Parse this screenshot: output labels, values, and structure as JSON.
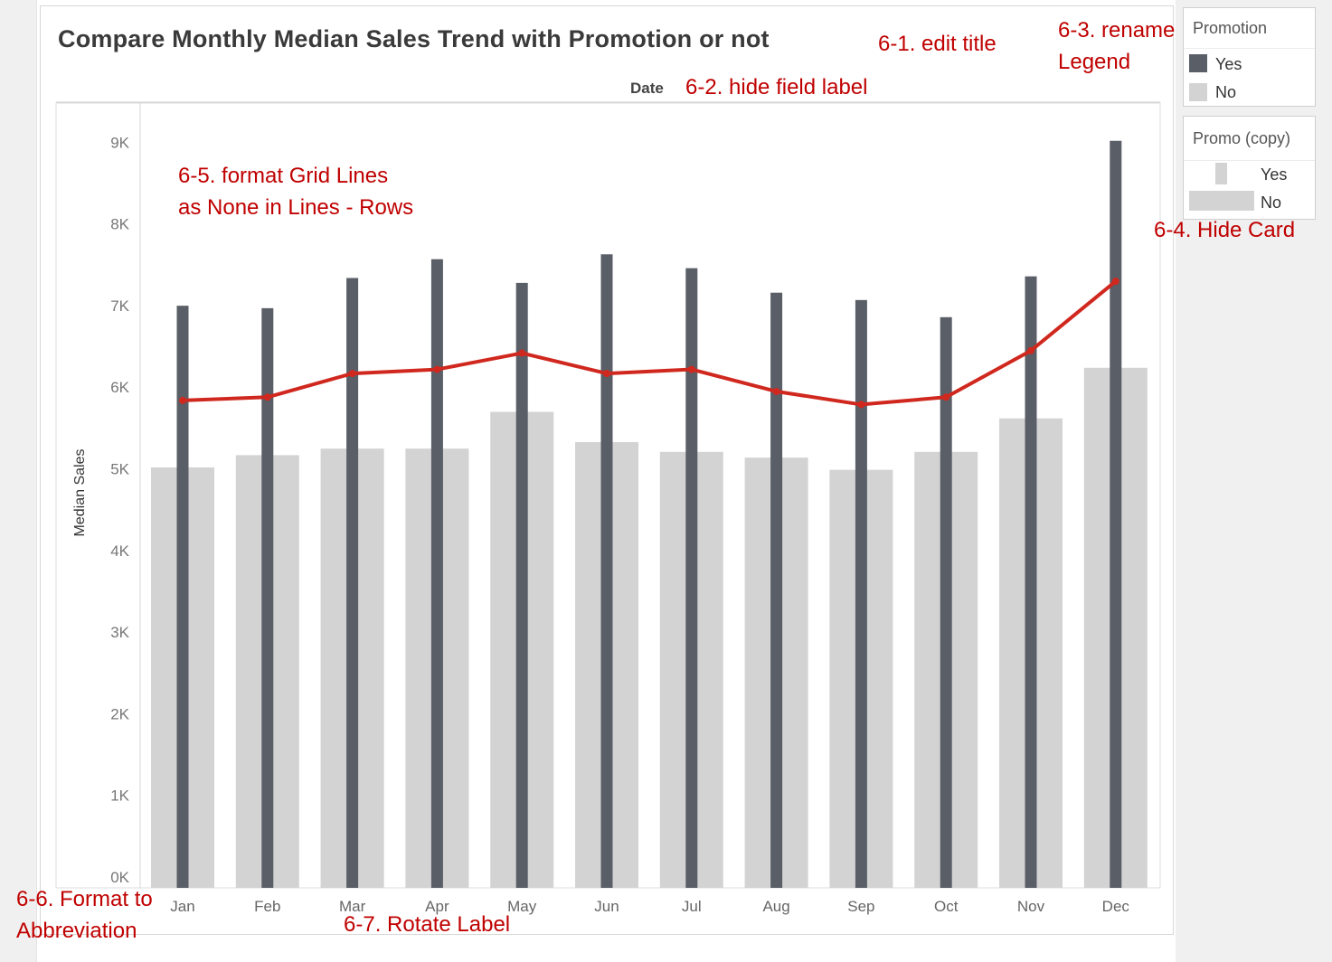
{
  "title": "Compare Monthly Median Sales Trend with Promotion or not",
  "field_label": "Date",
  "annotations": {
    "edit_title": "6-1. edit title",
    "hide_field_label": "6-2. hide field label",
    "rename_legend_line1": "6-3. rename",
    "rename_legend_line2": "Legend",
    "hide_card": "6-4. Hide Card",
    "grid_lines_line1": "6-5. format Grid Lines",
    "grid_lines_line2": "as None in Lines - Rows",
    "abbrev_line1": "6-6. Format to",
    "abbrev_line2": "Abbreviation",
    "rotate_label": "6-7. Rotate Label"
  },
  "legend_promotion": {
    "title": "Promotion",
    "items": [
      {
        "label": "Yes",
        "color": "#5a5e66"
      },
      {
        "label": "No",
        "color": "#d3d3d3"
      }
    ]
  },
  "legend_promo_copy": {
    "title": "Promo (copy)",
    "items": [
      {
        "label": "Yes",
        "color": "#d3d3d3"
      },
      {
        "label": "No",
        "color": "#d3d3d3"
      }
    ]
  },
  "chart_data": {
    "type": "bar",
    "categories": [
      "Jan",
      "Feb",
      "Mar",
      "Apr",
      "May",
      "Jun",
      "Jul",
      "Aug",
      "Sep",
      "Oct",
      "Nov",
      "Dec"
    ],
    "ylabel": "Median Sales",
    "xlabel": "",
    "ylim": [
      0,
      9500
    ],
    "yticks": [
      "0K",
      "1K",
      "2K",
      "3K",
      "4K",
      "5K",
      "6K",
      "7K",
      "8K",
      "9K"
    ],
    "grid": false,
    "series": [
      {
        "name": "No",
        "kind": "bar-wide",
        "color": "#d3d3d3",
        "values": [
          5150,
          5300,
          5380,
          5380,
          5830,
          5460,
          5340,
          5270,
          5120,
          5340,
          5750,
          6370
        ]
      },
      {
        "name": "Yes",
        "kind": "bar-narrow",
        "color": "#5a5e66",
        "values": [
          7130,
          7100,
          7470,
          7700,
          7410,
          7760,
          7590,
          7290,
          7200,
          6990,
          7490,
          9150
        ]
      },
      {
        "kind": "line",
        "color": "#d0281e",
        "values": [
          5970,
          6010,
          6300,
          6350,
          6550,
          6300,
          6350,
          6080,
          5920,
          6010,
          6580,
          7430
        ]
      }
    ]
  }
}
